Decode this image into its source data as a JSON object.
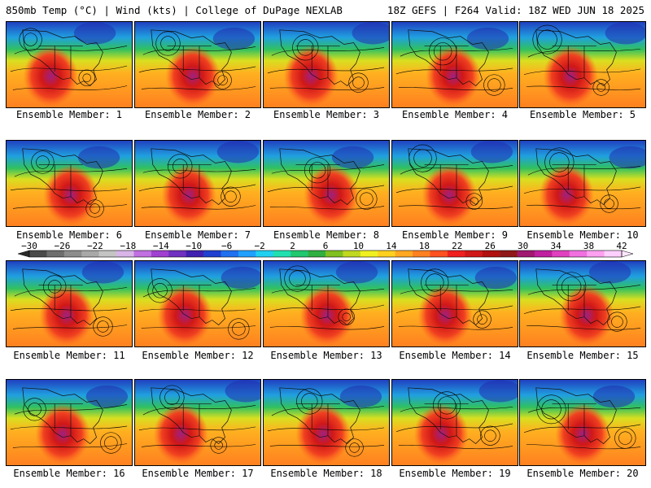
{
  "header": {
    "left": "850mb Temp (°C) | Wind (kts) | College of DuPage NEXLAB",
    "right": "18Z GEFS | F264 Valid: 18Z WED JUN 18 2025"
  },
  "panels": [
    {
      "label": "Ensemble Member: 1"
    },
    {
      "label": "Ensemble Member: 2"
    },
    {
      "label": "Ensemble Member: 3"
    },
    {
      "label": "Ensemble Member: 4"
    },
    {
      "label": "Ensemble Member: 5"
    },
    {
      "label": "Ensemble Member: 6"
    },
    {
      "label": "Ensemble Member: 7"
    },
    {
      "label": "Ensemble Member: 8"
    },
    {
      "label": "Ensemble Member: 9"
    },
    {
      "label": "Ensemble Member: 10"
    },
    {
      "label": "Ensemble Member: 11"
    },
    {
      "label": "Ensemble Member: 12"
    },
    {
      "label": "Ensemble Member: 13"
    },
    {
      "label": "Ensemble Member: 14"
    },
    {
      "label": "Ensemble Member: 15"
    },
    {
      "label": "Ensemble Member: 16"
    },
    {
      "label": "Ensemble Member: 17"
    },
    {
      "label": "Ensemble Member: 18"
    },
    {
      "label": "Ensemble Member: 19"
    },
    {
      "label": "Ensemble Member: 20"
    }
  ],
  "colorbar": {
    "ticks": [
      "−30",
      "−26",
      "−22",
      "−18",
      "−14",
      "−10",
      "−6",
      "−2",
      "2",
      "6",
      "10",
      "14",
      "18",
      "22",
      "26",
      "30",
      "34",
      "38",
      "42"
    ],
    "colors": [
      "#4a4a4a",
      "#6e6e6e",
      "#8c8c8c",
      "#a8a8a8",
      "#c4c4c4",
      "#d8b4e8",
      "#c070e0",
      "#a040d0",
      "#7030c0",
      "#4020b0",
      "#2040d0",
      "#2070f0",
      "#20a0ff",
      "#20d0f0",
      "#20e0b0",
      "#20c870",
      "#30b040",
      "#80c020",
      "#c0d820",
      "#f0f020",
      "#ffd020",
      "#ffa820",
      "#ff8020",
      "#ff5020",
      "#f02020",
      "#d01818",
      "#b01010",
      "#901818",
      "#a01870",
      "#c020a0",
      "#e040c0",
      "#f070e0",
      "#ffa0f0",
      "#ffd0ff"
    ]
  }
}
